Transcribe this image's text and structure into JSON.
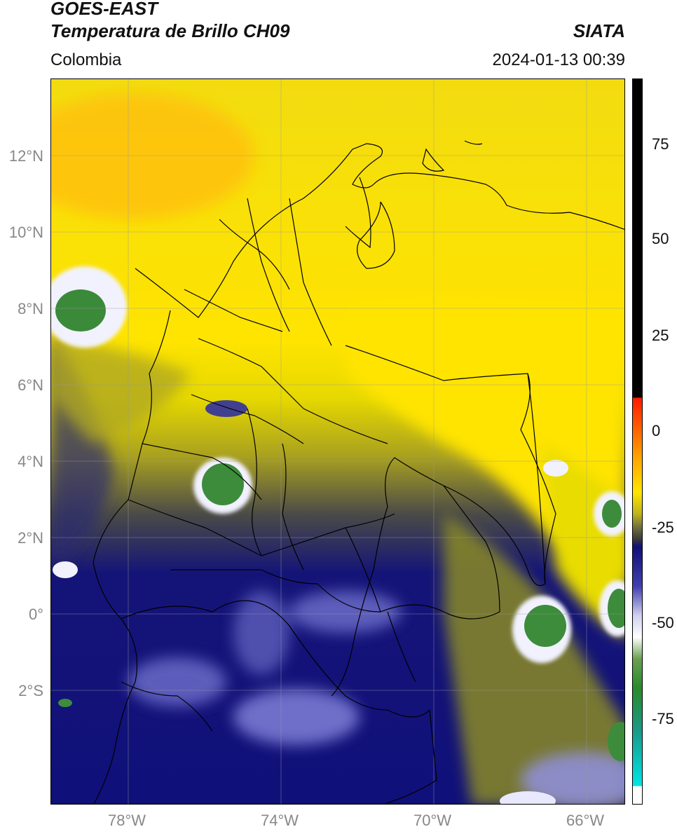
{
  "header": {
    "line1": "GOES-EAST",
    "line2": "Temperatura de Brillo CH09",
    "region": "Colombia",
    "brand": "SIATA",
    "datetime": "2024-01-13 00:39"
  },
  "map": {
    "lon_range": [
      -80,
      -65
    ],
    "lat_range": [
      -5,
      14
    ],
    "lat_ticks": [
      {
        "value": 12,
        "label": "12°N"
      },
      {
        "value": 10,
        "label": "10°N"
      },
      {
        "value": 8,
        "label": "8°N"
      },
      {
        "value": 6,
        "label": "6°N"
      },
      {
        "value": 4,
        "label": "4°N"
      },
      {
        "value": 2,
        "label": "2°N"
      },
      {
        "value": 0,
        "label": "0°"
      },
      {
        "value": -2,
        "label": "2°S"
      }
    ],
    "lon_ticks": [
      {
        "value": -78,
        "label": "78°W"
      },
      {
        "value": -74,
        "label": "74°W"
      },
      {
        "value": -70,
        "label": "70°W"
      },
      {
        "value": -66,
        "label": "66°W"
      }
    ]
  },
  "colorbar": {
    "range": [
      -95,
      90
    ],
    "ticks": [
      {
        "value": 75,
        "label": "75"
      },
      {
        "value": 50,
        "label": "50"
      },
      {
        "value": 25,
        "label": "25"
      },
      {
        "value": 0,
        "label": "0"
      },
      {
        "value": -25,
        "label": "-25"
      },
      {
        "value": -50,
        "label": "-50"
      },
      {
        "value": -75,
        "label": "-75"
      }
    ],
    "colors": {
      "white": "#ffffff",
      "cyan": "#00e0e0",
      "teal": "#1a9a8a",
      "green": "#2a8a2a",
      "white_cold": "#f5f5ff",
      "blue_light": "#6a6ad0",
      "navy": "#101080",
      "olive_dark": "#3a3a30",
      "olive": "#9a9a20",
      "yellow": "#ffe600",
      "orange": "#ff9a00",
      "red": "#ff2000",
      "black": "#000000"
    }
  }
}
